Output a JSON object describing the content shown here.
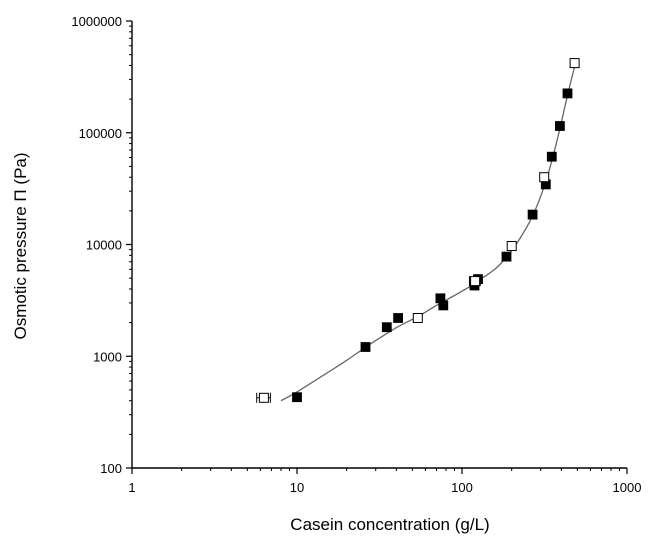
{
  "chart_data": {
    "type": "scatter",
    "title": "",
    "xlabel": "Casein concentration (g/L)",
    "ylabel": "Osmotic pressure Π (Pa)",
    "x_scale": "log",
    "y_scale": "log",
    "xlim": [
      1,
      1000
    ],
    "ylim": [
      100,
      1000000
    ],
    "x_ticks": [
      1,
      10,
      100,
      1000
    ],
    "y_ticks": [
      100,
      1000,
      10000,
      100000,
      1000000
    ],
    "x_tick_labels": [
      "1",
      "10",
      "100",
      "1000"
    ],
    "y_tick_labels": [
      "100",
      "1000",
      "10000",
      "100000",
      "1000000"
    ],
    "grid": false,
    "legend": "none",
    "series": [
      {
        "marker": "filled-square",
        "color": "#000000",
        "points": [
          [
            10,
            430
          ],
          [
            26,
            1210
          ],
          [
            35,
            1820
          ],
          [
            41,
            2200
          ],
          [
            74,
            3300
          ],
          [
            77,
            2850
          ],
          [
            119,
            4300
          ],
          [
            125,
            4900
          ],
          [
            186,
            7800
          ],
          [
            268,
            18500
          ],
          [
            322,
            34500
          ],
          [
            350,
            61000
          ],
          [
            392,
            115000
          ],
          [
            436,
            225000
          ]
        ]
      },
      {
        "marker": "open-square",
        "color": "#000000",
        "points": [
          [
            6.3,
            425
          ],
          [
            54,
            2200
          ],
          [
            120,
            4700
          ],
          [
            200,
            9700
          ],
          [
            315,
            40000
          ],
          [
            481,
            420000
          ]
        ],
        "x_error": [
          0.6,
          0,
          9,
          9,
          0,
          10
        ]
      }
    ],
    "fit_curve": {
      "color": "#666666",
      "points": [
        [
          8,
          400
        ],
        [
          10,
          480
        ],
        [
          15,
          700
        ],
        [
          20,
          920
        ],
        [
          30,
          1380
        ],
        [
          40,
          1800
        ],
        [
          55,
          2300
        ],
        [
          70,
          2850
        ],
        [
          90,
          3500
        ],
        [
          110,
          4150
        ],
        [
          130,
          4900
        ],
        [
          160,
          6100
        ],
        [
          190,
          8000
        ],
        [
          220,
          10800
        ],
        [
          260,
          16500
        ],
        [
          300,
          27000
        ],
        [
          340,
          48000
        ],
        [
          380,
          90000
        ],
        [
          420,
          170000
        ],
        [
          460,
          300000
        ],
        [
          490,
          430000
        ]
      ]
    }
  }
}
